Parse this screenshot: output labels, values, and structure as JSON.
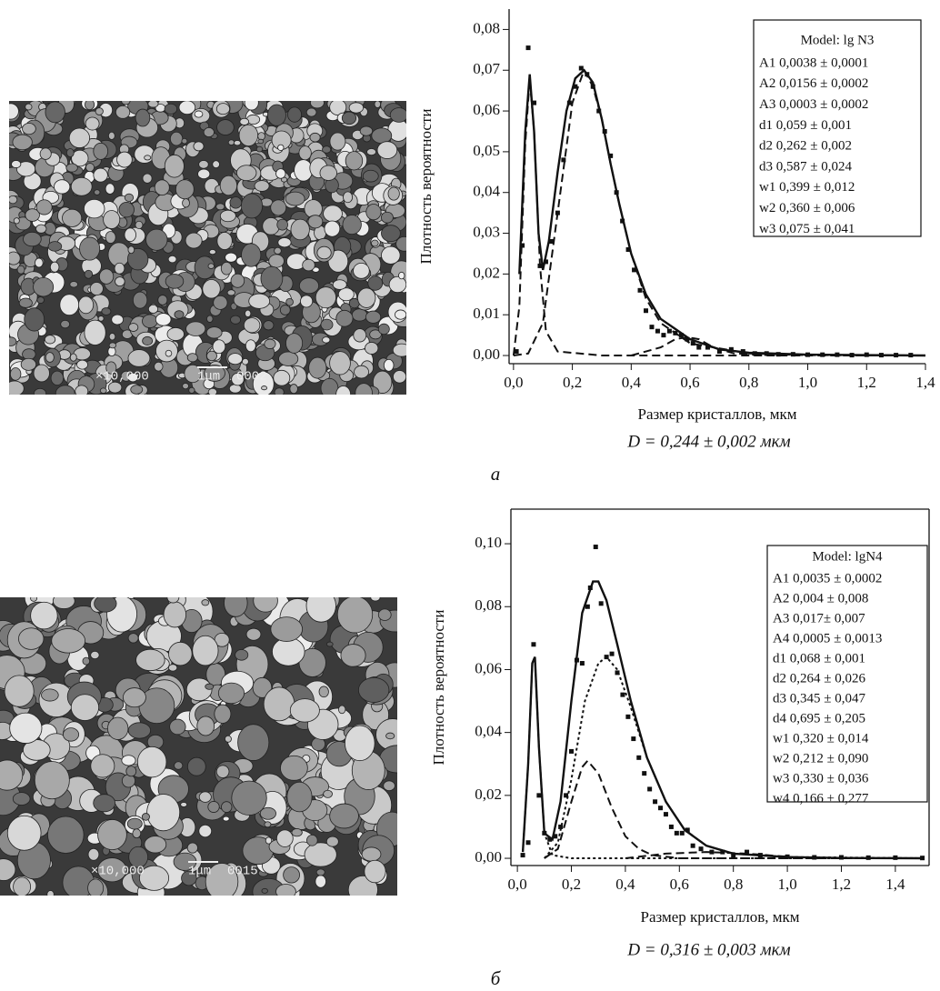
{
  "chart_data": [
    {
      "type": "scatter",
      "panel_label": "а",
      "x_label": "Размер кристаллов, мкм",
      "y_label": "Плотность вероятности",
      "formula": "D = 0,244 ± 0,002 мкм",
      "legend_title": "Model: lg N3",
      "parameters": [
        "A1 0,0038  ± 0,0001",
        "A2 0,0156 ± 0,0002",
        "A3 0,0003 ± 0,0002",
        "d1 0,059  ± 0,001",
        "d2 0,262 ± 0,002",
        "d3 0,587 ± 0,024",
        "w1 0,399 ± 0,012",
        "w2 0,360 ± 0,006",
        "w3 0,075 ± 0,041"
      ],
      "frame": false,
      "xlim": [
        -0.015,
        1.4
      ],
      "ylim": [
        -0.002,
        0.085
      ],
      "xticks": [
        {
          "value": 0,
          "label": "0,0"
        },
        {
          "value": 0.2,
          "label": "0,2"
        },
        {
          "value": 0.4,
          "label": "0,4"
        },
        {
          "value": 0.6,
          "label": "0,6"
        },
        {
          "value": 0.8,
          "label": "0,8"
        },
        {
          "value": 1.0,
          "label": "1,0"
        },
        {
          "value": 1.2,
          "label": "1,2"
        },
        {
          "value": 1.4,
          "label": "1,4"
        }
      ],
      "yticks": [
        {
          "value": 0,
          "label": "0,00"
        },
        {
          "value": 0.01,
          "label": "0,01"
        },
        {
          "value": 0.02,
          "label": "0,02"
        },
        {
          "value": 0.03,
          "label": "0,03"
        },
        {
          "value": 0.04,
          "label": "0,04"
        },
        {
          "value": 0.05,
          "label": "0,05"
        },
        {
          "value": 0.06,
          "label": "0,06"
        },
        {
          "value": 0.07,
          "label": "0,07"
        },
        {
          "value": 0.08,
          "label": "0,08"
        }
      ],
      "series": [
        {
          "style": "scatter",
          "color": "#111111",
          "x": [
            0.01,
            0.03,
            0.05,
            0.07,
            0.09,
            0.11,
            0.13,
            0.15,
            0.17,
            0.19,
            0.21,
            0.23,
            0.25,
            0.27,
            0.29,
            0.31,
            0.33,
            0.35,
            0.37,
            0.39,
            0.41,
            0.43,
            0.45,
            0.47,
            0.49,
            0.51,
            0.53,
            0.55,
            0.57,
            0.59,
            0.61,
            0.63,
            0.66,
            0.7,
            0.74,
            0.78,
            0.82,
            0.86,
            0.9,
            0.95,
            1.0,
            1.05,
            1.1,
            1.15,
            1.2,
            1.25,
            1.3,
            1.35
          ],
          "values": [
            0.001,
            0.027,
            0.0755,
            0.062,
            0.022,
            0.023,
            0.028,
            0.035,
            0.048,
            0.062,
            0.066,
            0.0705,
            0.069,
            0.066,
            0.06,
            0.055,
            0.049,
            0.04,
            0.033,
            0.026,
            0.021,
            0.016,
            0.011,
            0.007,
            0.006,
            0.005,
            0.006,
            0.0055,
            0.005,
            0.004,
            0.003,
            0.002,
            0.002,
            0.001,
            0.0015,
            0.001,
            0.0005,
            0.0005,
            0.0003,
            0.0003,
            0.0002,
            0.0002,
            0.0002,
            0.0001,
            0.0002,
            0.0001,
            0.0001,
            0.0001
          ]
        },
        {
          "style": "solid",
          "color": "#111111",
          "x": [
            0.02,
            0.04,
            0.055,
            0.07,
            0.085,
            0.1,
            0.12,
            0.15,
            0.18,
            0.21,
            0.24,
            0.27,
            0.3,
            0.33,
            0.36,
            0.4,
            0.45,
            0.5,
            0.55,
            0.6,
            0.7,
            0.8,
            1.0,
            1.2,
            1.4
          ],
          "values": [
            0.02,
            0.055,
            0.069,
            0.055,
            0.03,
            0.021,
            0.028,
            0.045,
            0.06,
            0.068,
            0.07,
            0.067,
            0.058,
            0.047,
            0.037,
            0.025,
            0.015,
            0.009,
            0.0065,
            0.004,
            0.0015,
            0.0007,
            0.0002,
            0.0001,
            0
          ]
        },
        {
          "style": "dashed",
          "color": "#111111",
          "x": [
            0,
            0.02,
            0.04,
            0.055,
            0.07,
            0.09,
            0.11,
            0.15,
            0.3,
            1.4
          ],
          "values": [
            0,
            0.012,
            0.052,
            0.068,
            0.055,
            0.022,
            0.006,
            0.001,
            0,
            0
          ]
        },
        {
          "style": "dashed",
          "color": "#111111",
          "x": [
            0,
            0.05,
            0.1,
            0.15,
            0.2,
            0.24,
            0.27,
            0.3,
            0.33,
            0.36,
            0.4,
            0.45,
            0.5,
            0.6,
            0.8,
            1.0,
            1.4
          ],
          "values": [
            0,
            0.0005,
            0.008,
            0.035,
            0.062,
            0.07,
            0.066,
            0.058,
            0.047,
            0.037,
            0.025,
            0.014,
            0.008,
            0.003,
            0.0005,
            0.0001,
            0
          ]
        },
        {
          "style": "dashed",
          "color": "#111111",
          "x": [
            0.4,
            0.5,
            0.55,
            0.59,
            0.63,
            0.68,
            0.75,
            0.9
          ],
          "values": [
            0,
            0.002,
            0.004,
            0.0045,
            0.004,
            0.002,
            0.0005,
            0
          ]
        }
      ]
    },
    {
      "type": "scatter",
      "panel_label": "б",
      "x_label": "Размер кристаллов, мкм",
      "y_label": "Плотность вероятности",
      "formula": "D = 0,316 ± 0,003 мкм",
      "legend_title": "Model: lgN4",
      "parameters": [
        "A1 0,0035  ± 0,0002",
        "A2 0,004 ± 0,008",
        "A3 0,017± 0,007",
        "A4 0,0005  ± 0,0013",
        "d1 0,068 ± 0,001",
        "d2 0,264 ± 0,026",
        "d3 0,345 ± 0,047",
        "d4 0,695 ± 0,205",
        "w1 0,320 ± 0,014",
        "w2 0,212 ± 0,090",
        "w3 0,330 ± 0,036",
        "w4 0,166 ± 0,277"
      ],
      "frame": true,
      "xlim": [
        -0.024,
        1.525
      ],
      "ylim": [
        -0.0023,
        0.111
      ],
      "xticks": [
        {
          "value": 0,
          "label": "0,0"
        },
        {
          "value": 0.2,
          "label": "0,2"
        },
        {
          "value": 0.4,
          "label": "0,4"
        },
        {
          "value": 0.6,
          "label": "0,6"
        },
        {
          "value": 0.8,
          "label": "0,8"
        },
        {
          "value": 1.0,
          "label": "1,0"
        },
        {
          "value": 1.2,
          "label": "1,2"
        },
        {
          "value": 1.4,
          "label": "1,4"
        }
      ],
      "yticks": [
        {
          "value": 0,
          "label": "0,00"
        },
        {
          "value": 0.02,
          "label": "0,02"
        },
        {
          "value": 0.04,
          "label": "0,04"
        },
        {
          "value": 0.06,
          "label": "0,06"
        },
        {
          "value": 0.08,
          "label": "0,08"
        },
        {
          "value": 0.1,
          "label": "0,10"
        }
      ],
      "series": [
        {
          "style": "scatter",
          "color": "#111111",
          "x": [
            0.02,
            0.04,
            0.06,
            0.08,
            0.1,
            0.12,
            0.14,
            0.16,
            0.18,
            0.2,
            0.22,
            0.24,
            0.26,
            0.27,
            0.29,
            0.31,
            0.33,
            0.35,
            0.37,
            0.39,
            0.41,
            0.43,
            0.45,
            0.47,
            0.49,
            0.51,
            0.53,
            0.55,
            0.57,
            0.59,
            0.61,
            0.63,
            0.65,
            0.68,
            0.72,
            0.76,
            0.8,
            0.85,
            0.9,
            1.0,
            1.1,
            1.2,
            1.3,
            1.4,
            1.5
          ],
          "values": [
            0.001,
            0.005,
            0.068,
            0.02,
            0.008,
            0.006,
            0.007,
            0.01,
            0.02,
            0.034,
            0.063,
            0.062,
            0.08,
            0.086,
            0.099,
            0.081,
            0.064,
            0.065,
            0.059,
            0.052,
            0.045,
            0.038,
            0.032,
            0.027,
            0.022,
            0.018,
            0.016,
            0.014,
            0.01,
            0.008,
            0.008,
            0.009,
            0.004,
            0.003,
            0.002,
            0.002,
            0.001,
            0.002,
            0.001,
            0.0005,
            0.0003,
            0.0003,
            0.0002,
            0.0002,
            0.0001
          ]
        },
        {
          "style": "solid",
          "color": "#111111",
          "x": [
            0.02,
            0.04,
            0.055,
            0.065,
            0.08,
            0.1,
            0.13,
            0.16,
            0.2,
            0.24,
            0.28,
            0.3,
            0.33,
            0.37,
            0.42,
            0.48,
            0.55,
            0.62,
            0.7,
            0.8,
            1.0,
            1.2,
            1.5
          ],
          "values": [
            0.002,
            0.03,
            0.062,
            0.064,
            0.035,
            0.008,
            0.006,
            0.018,
            0.05,
            0.078,
            0.088,
            0.088,
            0.082,
            0.068,
            0.05,
            0.032,
            0.018,
            0.009,
            0.004,
            0.0015,
            0.0004,
            0.0001,
            0
          ]
        },
        {
          "style": "dotted",
          "color": "#111111",
          "x": [
            0.02,
            0.04,
            0.055,
            0.065,
            0.08,
            0.1,
            0.13,
            0.2,
            1.5
          ],
          "values": [
            0.002,
            0.03,
            0.062,
            0.064,
            0.035,
            0.008,
            0.001,
            0,
            0
          ]
        },
        {
          "style": "dashed",
          "color": "#111111",
          "x": [
            0.1,
            0.15,
            0.2,
            0.24,
            0.26,
            0.3,
            0.35,
            0.4,
            0.45,
            0.5,
            0.6,
            1.5
          ],
          "values": [
            0,
            0.003,
            0.018,
            0.029,
            0.031,
            0.027,
            0.016,
            0.007,
            0.003,
            0.001,
            0,
            0
          ]
        },
        {
          "style": "dotted",
          "color": "#111111",
          "x": [
            0.1,
            0.15,
            0.2,
            0.25,
            0.3,
            0.33,
            0.37,
            0.42,
            0.48,
            0.55,
            0.62,
            0.7,
            0.8,
            1.0,
            1.5
          ],
          "values": [
            0,
            0.005,
            0.025,
            0.05,
            0.062,
            0.064,
            0.06,
            0.048,
            0.032,
            0.018,
            0.009,
            0.004,
            0.0015,
            0.0004,
            0
          ]
        },
        {
          "style": "dashed",
          "color": "#111111",
          "x": [
            0.4,
            0.55,
            0.7,
            0.85,
            1.0
          ],
          "values": [
            0,
            0.0015,
            0.002,
            0.0015,
            0.0005
          ]
        }
      ]
    }
  ],
  "micrographs": [
    {
      "magnification": "×10,000",
      "scale": "1μm",
      "id": "0002"
    },
    {
      "magnification": "×10,000",
      "scale": "1μm",
      "id": "0015"
    }
  ]
}
